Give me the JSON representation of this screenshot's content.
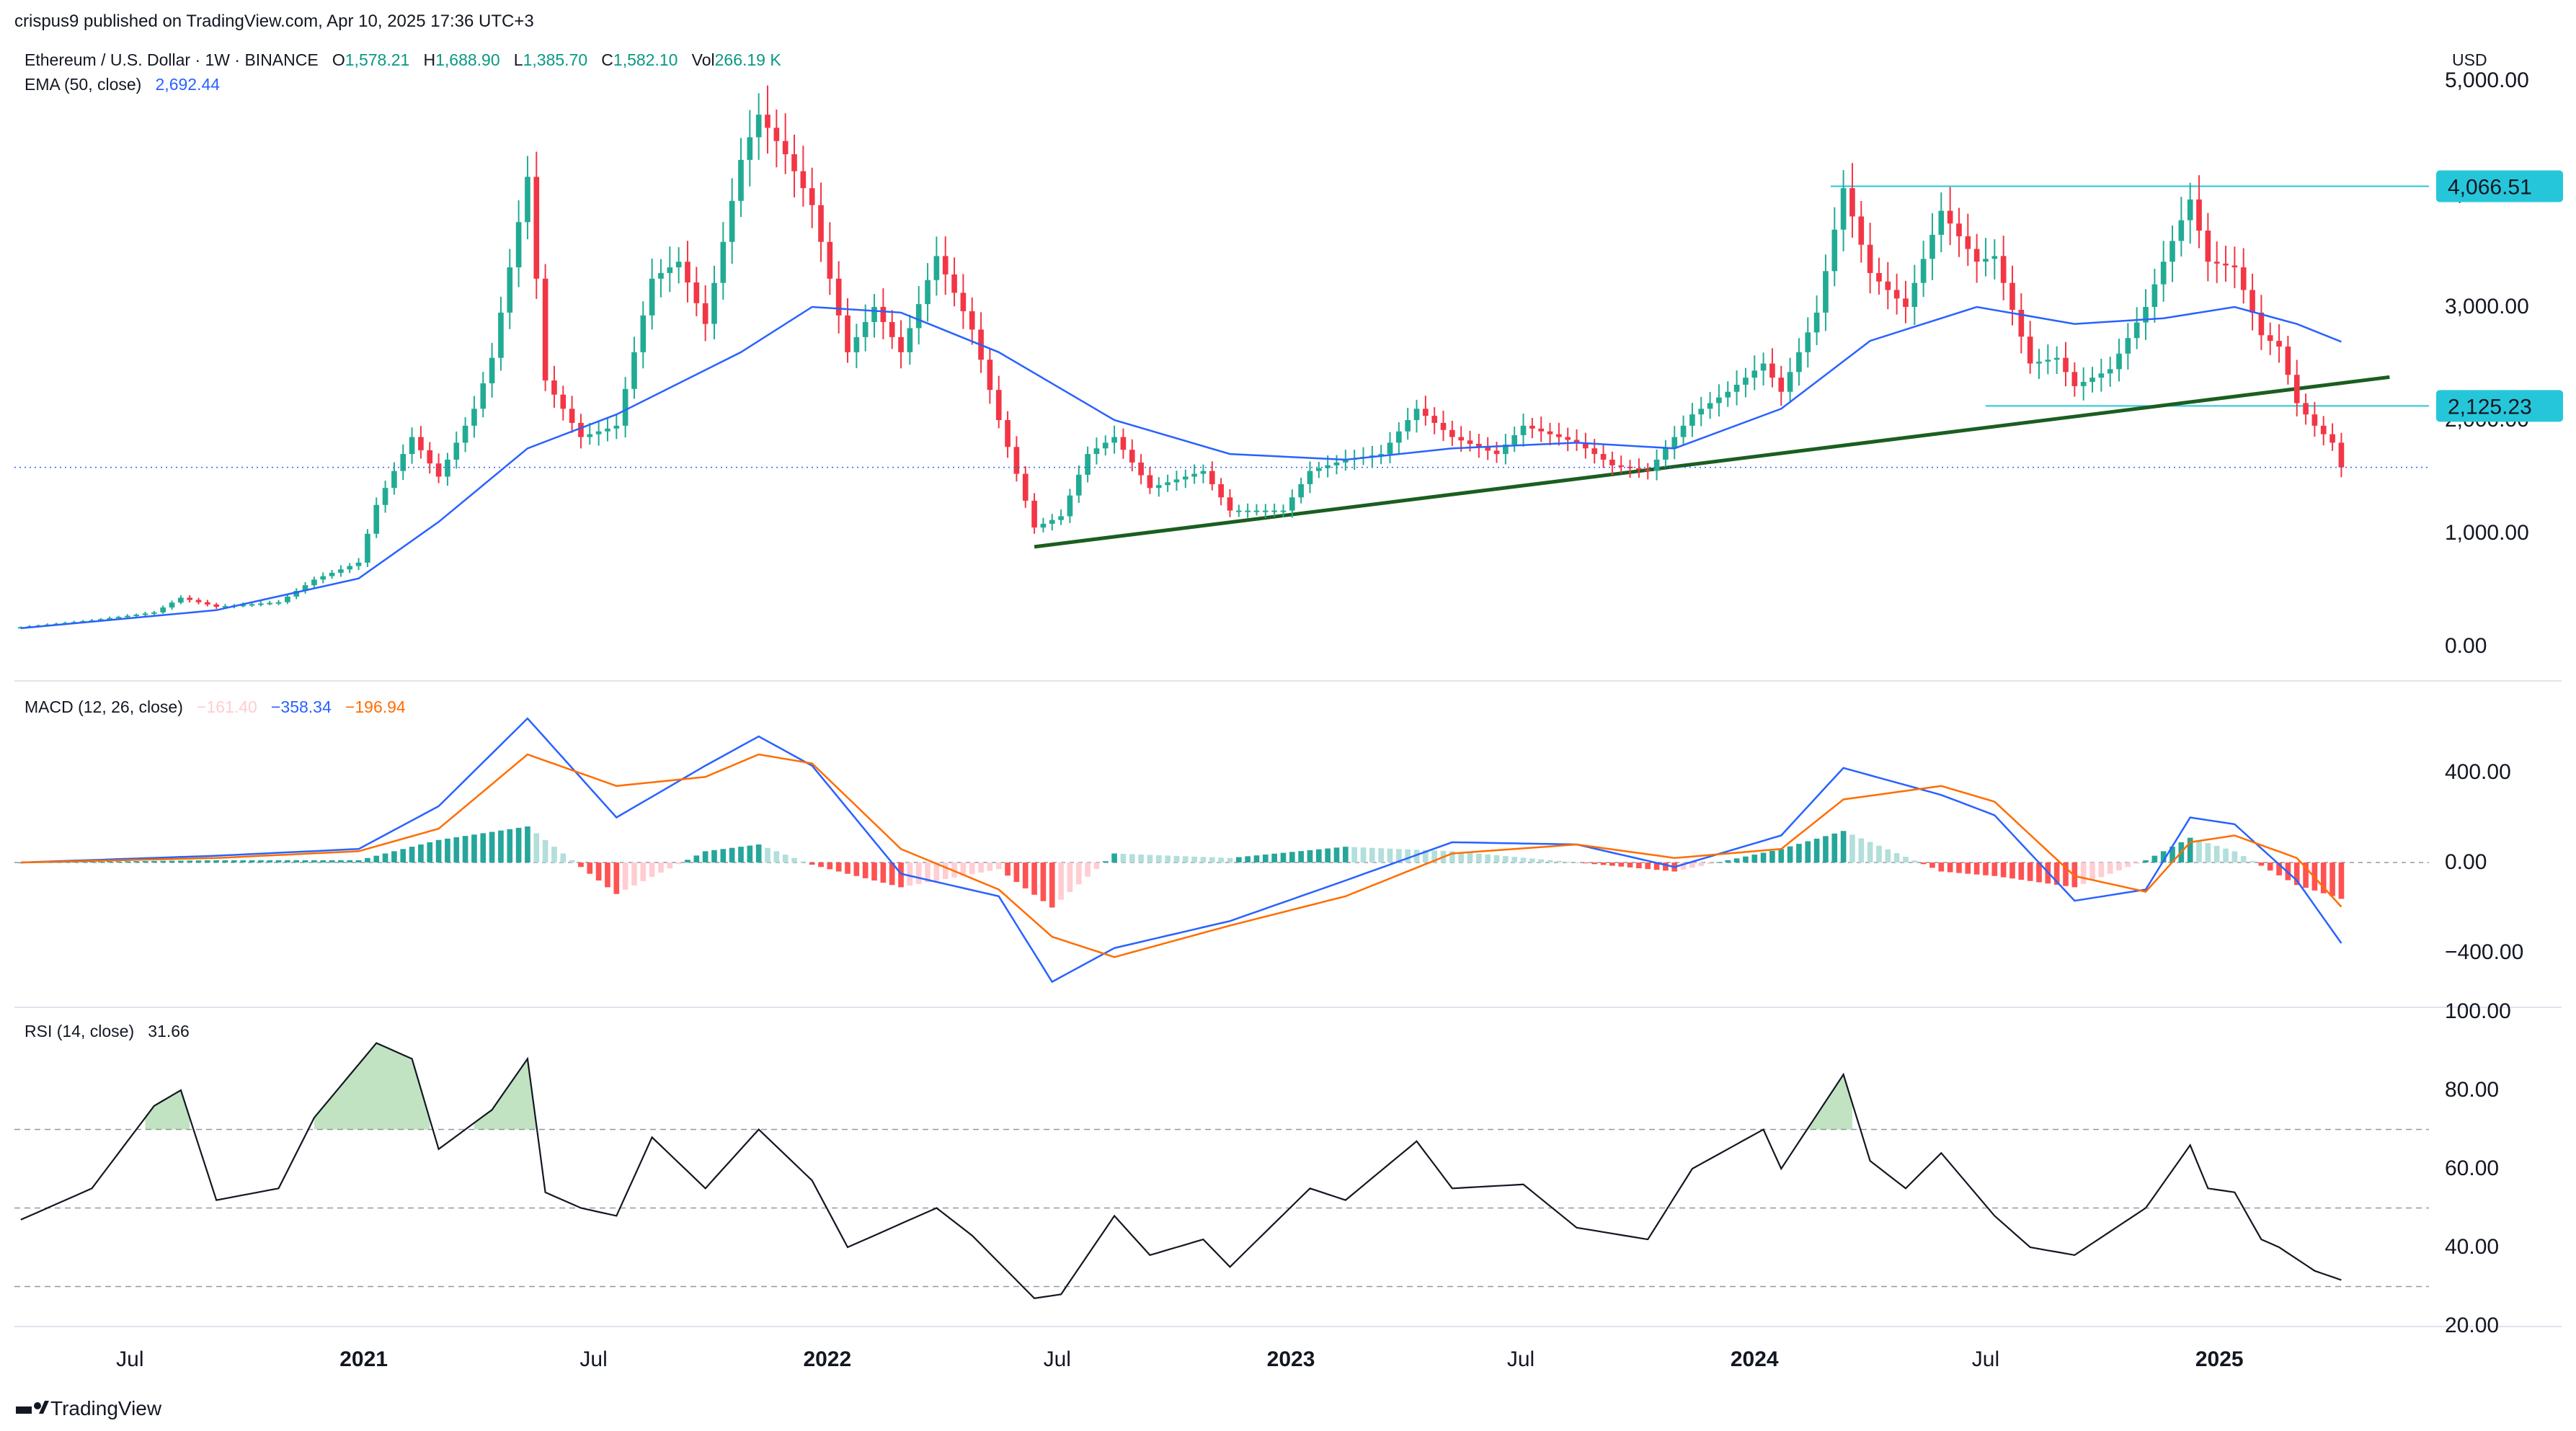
{
  "header": {
    "publisher": "crispus9 published on TradingView.com, Apr 10, 2025 17:36 UTC+3",
    "symbol": "Ethereum / U.S. Dollar · 1W · BINANCE",
    "o_label": "O",
    "o_value": "1,578.21",
    "h_label": "H",
    "h_value": "1,688.90",
    "l_label": "L",
    "l_value": "1,385.70",
    "c_label": "C",
    "c_value": "1,582.10",
    "vol_label": "Vol",
    "vol_value": "266.19 K",
    "ema_label": "EMA (50, close)",
    "ema_value": "2,692.44",
    "currency": "USD"
  },
  "footer": {
    "logo_text": "TradingView"
  },
  "colors": {
    "up": "#22ab94",
    "down": "#f23645",
    "ema": "#2962ff",
    "macd": "#2962ff",
    "signal": "#ff6d00",
    "hist_up": "#26a69a",
    "hist_up_light": "#b2dfdb",
    "hist_down": "#ff5252",
    "hist_down_light": "#ffcdd2",
    "rsi": "#131722",
    "trendline": "#1b5e20",
    "level": "#26c6da",
    "overbought_fill": "#4caf50"
  },
  "chart_data": [
    {
      "type": "candlestick",
      "title": "Ethereum / U.S. Dollar · 1W · BINANCE",
      "x_axis": {
        "type": "date",
        "range": [
          "2020-04-01",
          "2025-06-15"
        ],
        "tick_labels": [
          "Jul",
          "2021",
          "Jul",
          "2022",
          "Jul",
          "2023",
          "Jul",
          "2024",
          "Jul",
          "2025"
        ]
      },
      "y_axis": {
        "ylim": [
          0,
          5000
        ],
        "tick_labels": [
          "0.00",
          "1,000.00",
          "2,000.00",
          "3,000.00",
          "4,000.00",
          "5,000.00"
        ],
        "position": "right"
      },
      "last_price": 1582.1,
      "levels": [
        {
          "label": "4,066.51",
          "value": 4066.51,
          "from": "2024-03-01"
        },
        {
          "label": "2,125.23",
          "value": 2125.23,
          "from": "2024-07-01"
        }
      ],
      "trendline": {
        "start": {
          "x": "2022-06-13",
          "y": 880
        },
        "end": {
          "x": "2025-05-15",
          "y": 2380
        }
      },
      "price_path": [
        [
          "2020-04-06",
          170
        ],
        [
          "2020-06-01",
          230
        ],
        [
          "2020-07-20",
          300
        ],
        [
          "2020-08-10",
          430
        ],
        [
          "2020-09-07",
          350
        ],
        [
          "2020-10-26",
          390
        ],
        [
          "2020-11-23",
          590
        ],
        [
          "2020-12-28",
          740
        ],
        [
          "2021-01-11",
          1250
        ],
        [
          "2021-02-08",
          1850
        ],
        [
          "2021-03-01",
          1500
        ],
        [
          "2021-03-29",
          2100
        ],
        [
          "2021-04-12",
          2550
        ],
        [
          "2021-05-10",
          4150
        ],
        [
          "2021-05-24",
          2350
        ],
        [
          "2021-06-21",
          1850
        ],
        [
          "2021-07-19",
          1950
        ],
        [
          "2021-08-16",
          3250
        ],
        [
          "2021-09-06",
          3400
        ],
        [
          "2021-09-27",
          2850
        ],
        [
          "2021-10-25",
          4300
        ],
        [
          "2021-11-08",
          4700
        ],
        [
          "2021-11-29",
          4350
        ],
        [
          "2021-12-20",
          3900
        ],
        [
          "2022-01-17",
          2600
        ],
        [
          "2022-02-07",
          3000
        ],
        [
          "2022-02-28",
          2600
        ],
        [
          "2022-03-28",
          3450
        ],
        [
          "2022-04-25",
          2800
        ],
        [
          "2022-05-16",
          2000
        ],
        [
          "2022-06-13",
          1050
        ],
        [
          "2022-07-04",
          1150
        ],
        [
          "2022-07-25",
          1700
        ],
        [
          "2022-08-15",
          1850
        ],
        [
          "2022-09-12",
          1400
        ],
        [
          "2022-10-24",
          1550
        ],
        [
          "2022-11-14",
          1200
        ],
        [
          "2022-12-26",
          1200
        ],
        [
          "2023-01-16",
          1550
        ],
        [
          "2023-02-13",
          1650
        ],
        [
          "2023-03-13",
          1700
        ],
        [
          "2023-04-10",
          2100
        ],
        [
          "2023-05-08",
          1850
        ],
        [
          "2023-06-12",
          1700
        ],
        [
          "2023-07-03",
          1950
        ],
        [
          "2023-08-14",
          1800
        ],
        [
          "2023-09-11",
          1600
        ],
        [
          "2023-10-09",
          1550
        ],
        [
          "2023-10-30",
          1850
        ],
        [
          "2023-11-13",
          2050
        ],
        [
          "2023-12-11",
          2250
        ],
        [
          "2024-01-08",
          2500
        ],
        [
          "2024-01-22",
          2250
        ],
        [
          "2024-02-19",
          2950
        ],
        [
          "2024-03-11",
          4050
        ],
        [
          "2024-04-01",
          3300
        ],
        [
          "2024-04-29",
          3000
        ],
        [
          "2024-05-27",
          3850
        ],
        [
          "2024-06-24",
          3400
        ],
        [
          "2024-07-08",
          3450
        ],
        [
          "2024-08-05",
          2500
        ],
        [
          "2024-08-26",
          2550
        ],
        [
          "2024-09-09",
          2300
        ],
        [
          "2024-10-07",
          2450
        ],
        [
          "2024-11-04",
          3000
        ],
        [
          "2024-11-18",
          3400
        ],
        [
          "2024-12-09",
          3950
        ],
        [
          "2024-12-23",
          3400
        ],
        [
          "2025-01-13",
          3350
        ],
        [
          "2025-02-03",
          2750
        ],
        [
          "2025-02-17",
          2650
        ],
        [
          "2025-03-03",
          2150
        ],
        [
          "2025-03-17",
          1950
        ],
        [
          "2025-03-31",
          1800
        ],
        [
          "2025-04-07",
          1582
        ]
      ],
      "ema50_path": [
        [
          "2020-04-06",
          160
        ],
        [
          "2020-09-07",
          320
        ],
        [
          "2020-12-28",
          600
        ],
        [
          "2021-03-01",
          1100
        ],
        [
          "2021-05-10",
          1750
        ],
        [
          "2021-07-19",
          2050
        ],
        [
          "2021-10-25",
          2600
        ],
        [
          "2021-12-20",
          3000
        ],
        [
          "2022-02-28",
          2950
        ],
        [
          "2022-05-16",
          2600
        ],
        [
          "2022-08-15",
          2000
        ],
        [
          "2022-11-14",
          1700
        ],
        [
          "2023-02-13",
          1650
        ],
        [
          "2023-05-08",
          1750
        ],
        [
          "2023-08-14",
          1800
        ],
        [
          "2023-10-30",
          1750
        ],
        [
          "2024-01-22",
          2100
        ],
        [
          "2024-04-01",
          2700
        ],
        [
          "2024-06-24",
          3000
        ],
        [
          "2024-09-09",
          2850
        ],
        [
          "2024-11-18",
          2900
        ],
        [
          "2025-01-13",
          3000
        ],
        [
          "2025-03-03",
          2850
        ],
        [
          "2025-04-07",
          2692.44
        ]
      ]
    },
    {
      "type": "line",
      "title": "MACD (12, 26, close)",
      "values_shown": [
        "−161.40",
        "−358.34",
        "−196.94"
      ],
      "y_axis": {
        "ylim": [
          -500,
          800
        ],
        "tick_labels": [
          "400.00",
          "0.00",
          "−400.00"
        ],
        "position": "right"
      },
      "series": [
        {
          "name": "MACD",
          "path": [
            [
              "2020-04-06",
              0
            ],
            [
              "2020-09-07",
              30
            ],
            [
              "2020-12-28",
              60
            ],
            [
              "2021-03-01",
              250
            ],
            [
              "2021-05-10",
              640
            ],
            [
              "2021-07-19",
              200
            ],
            [
              "2021-09-27",
              430
            ],
            [
              "2021-11-08",
              560
            ],
            [
              "2021-12-20",
              430
            ],
            [
              "2022-02-28",
              -50
            ],
            [
              "2022-05-16",
              -150
            ],
            [
              "2022-06-27",
              -530
            ],
            [
              "2022-08-15",
              -380
            ],
            [
              "2022-11-14",
              -260
            ],
            [
              "2023-02-13",
              -80
            ],
            [
              "2023-05-08",
              90
            ],
            [
              "2023-08-14",
              80
            ],
            [
              "2023-10-30",
              -20
            ],
            [
              "2024-01-22",
              120
            ],
            [
              "2024-03-11",
              420
            ],
            [
              "2024-05-27",
              300
            ],
            [
              "2024-07-08",
              210
            ],
            [
              "2024-09-09",
              -170
            ],
            [
              "2024-11-04",
              -120
            ],
            [
              "2024-12-09",
              200
            ],
            [
              "2025-01-13",
              170
            ],
            [
              "2025-03-03",
              -80
            ],
            [
              "2025-04-07",
              -358.34
            ]
          ]
        },
        {
          "name": "Signal",
          "path": [
            [
              "2020-04-06",
              0
            ],
            [
              "2020-09-07",
              20
            ],
            [
              "2020-12-28",
              50
            ],
            [
              "2021-03-01",
              150
            ],
            [
              "2021-05-10",
              480
            ],
            [
              "2021-07-19",
              340
            ],
            [
              "2021-09-27",
              380
            ],
            [
              "2021-11-08",
              480
            ],
            [
              "2021-12-20",
              440
            ],
            [
              "2022-02-28",
              60
            ],
            [
              "2022-05-16",
              -120
            ],
            [
              "2022-06-27",
              -330
            ],
            [
              "2022-08-15",
              -420
            ],
            [
              "2022-11-14",
              -280
            ],
            [
              "2023-02-13",
              -150
            ],
            [
              "2023-05-08",
              40
            ],
            [
              "2023-08-14",
              80
            ],
            [
              "2023-10-30",
              20
            ],
            [
              "2024-01-22",
              60
            ],
            [
              "2024-03-11",
              280
            ],
            [
              "2024-05-27",
              340
            ],
            [
              "2024-07-08",
              270
            ],
            [
              "2024-09-09",
              -60
            ],
            [
              "2024-11-04",
              -130
            ],
            [
              "2024-12-09",
              90
            ],
            [
              "2025-01-13",
              120
            ],
            [
              "2025-03-03",
              20
            ],
            [
              "2025-04-07",
              -196.94
            ]
          ]
        },
        {
          "name": "Histogram",
          "last": -161.4
        }
      ]
    },
    {
      "type": "line",
      "title": "RSI (14, close)",
      "value_shown": "31.66",
      "y_axis": {
        "ylim": [
          20,
          100
        ],
        "tick_labels": [
          "20.00",
          "40.00",
          "60.00",
          "80.00",
          "100.00"
        ],
        "position": "right"
      },
      "bands": [
        70,
        50,
        30
      ],
      "series": [
        {
          "name": "RSI",
          "path": [
            [
              "2020-04-06",
              47
            ],
            [
              "2020-06-01",
              55
            ],
            [
              "2020-07-20",
              76
            ],
            [
              "2020-08-10",
              80
            ],
            [
              "2020-09-07",
              52
            ],
            [
              "2020-10-26",
              55
            ],
            [
              "2020-11-23",
              73
            ],
            [
              "2021-01-11",
              92
            ],
            [
              "2021-02-08",
              88
            ],
            [
              "2021-03-01",
              65
            ],
            [
              "2021-04-12",
              75
            ],
            [
              "2021-05-10",
              88
            ],
            [
              "2021-05-24",
              54
            ],
            [
              "2021-06-21",
              50
            ],
            [
              "2021-07-19",
              48
            ],
            [
              "2021-08-16",
              68
            ],
            [
              "2021-09-27",
              55
            ],
            [
              "2021-11-08",
              70
            ],
            [
              "2021-12-20",
              57
            ],
            [
              "2022-01-17",
              40
            ],
            [
              "2022-03-28",
              50
            ],
            [
              "2022-04-25",
              43
            ],
            [
              "2022-06-13",
              27
            ],
            [
              "2022-07-04",
              28
            ],
            [
              "2022-08-15",
              48
            ],
            [
              "2022-09-12",
              38
            ],
            [
              "2022-10-24",
              42
            ],
            [
              "2022-11-14",
              35
            ],
            [
              "2023-01-16",
              55
            ],
            [
              "2023-02-13",
              52
            ],
            [
              "2023-04-10",
              67
            ],
            [
              "2023-05-08",
              55
            ],
            [
              "2023-07-03",
              56
            ],
            [
              "2023-08-14",
              45
            ],
            [
              "2023-10-09",
              42
            ],
            [
              "2023-11-13",
              60
            ],
            [
              "2024-01-08",
              70
            ],
            [
              "2024-01-22",
              60
            ],
            [
              "2024-03-11",
              84
            ],
            [
              "2024-04-01",
              62
            ],
            [
              "2024-04-29",
              55
            ],
            [
              "2024-05-27",
              64
            ],
            [
              "2024-07-08",
              48
            ],
            [
              "2024-08-05",
              40
            ],
            [
              "2024-09-09",
              38
            ],
            [
              "2024-11-04",
              50
            ],
            [
              "2024-12-09",
              66
            ],
            [
              "2024-12-23",
              55
            ],
            [
              "2025-01-13",
              54
            ],
            [
              "2025-02-03",
              42
            ],
            [
              "2025-02-17",
              40
            ],
            [
              "2025-03-17",
              34
            ],
            [
              "2025-04-07",
              31.66
            ]
          ]
        }
      ]
    }
  ]
}
